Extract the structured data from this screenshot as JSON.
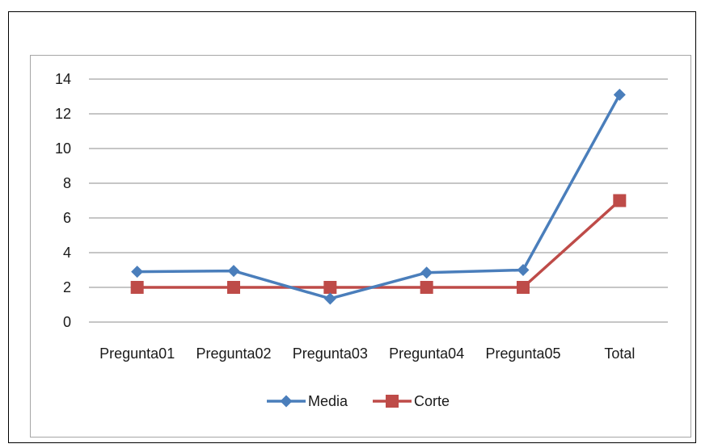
{
  "chart_data": {
    "type": "line",
    "categories": [
      "Pregunta01",
      "Pregunta02",
      "Pregunta03",
      "Pregunta04",
      "Pregunta05",
      "Total"
    ],
    "series": [
      {
        "name": "Media",
        "values": [
          2.9,
          2.95,
          1.35,
          2.85,
          3.0,
          13.1
        ],
        "color": "#4a7ebb",
        "marker": "diamond"
      },
      {
        "name": "Corte",
        "values": [
          2,
          2,
          2,
          2,
          2,
          7
        ],
        "color": "#be4b48",
        "marker": "square"
      }
    ],
    "yticks": [
      0,
      2,
      4,
      6,
      8,
      10,
      12,
      14
    ],
    "ylim": [
      0,
      14
    ],
    "grid": true,
    "legend_position": "bottom",
    "title": "",
    "xlabel": "",
    "ylabel": ""
  }
}
